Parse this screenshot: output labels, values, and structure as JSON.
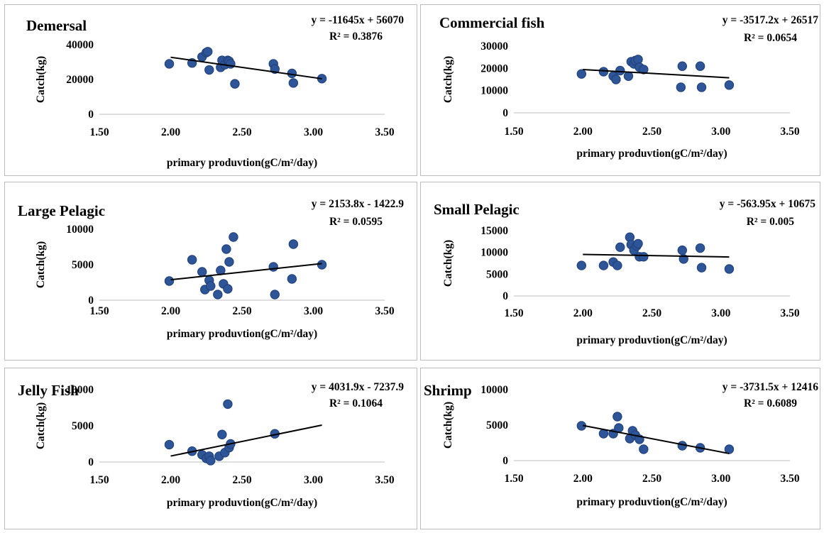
{
  "chart_data": [
    {
      "type": "scatter",
      "title": "Demersal",
      "equation": "y = -11645x + 56070",
      "r2": "R² = 0.3876",
      "xlabel": "primary produvtion(gC/m²/day)",
      "ylabel": "Catch(kg)",
      "xlim": [
        1.5,
        3.5
      ],
      "ylim": [
        0,
        40000
      ],
      "xticks": [
        "1.50",
        "2.00",
        "2.50",
        "3.00",
        "3.50"
      ],
      "yticks": [
        "0",
        "20000",
        "40000"
      ],
      "trendline": {
        "slope": -11645,
        "intercept": 56070,
        "x_range": [
          2.0,
          3.06
        ]
      },
      "points": [
        [
          1.99,
          29000
        ],
        [
          2.15,
          29500
        ],
        [
          2.22,
          33000
        ],
        [
          2.25,
          35500
        ],
        [
          2.26,
          36000
        ],
        [
          2.27,
          25500
        ],
        [
          2.35,
          27000
        ],
        [
          2.36,
          31000
        ],
        [
          2.38,
          28500
        ],
        [
          2.4,
          31000
        ],
        [
          2.41,
          30500
        ],
        [
          2.42,
          29000
        ],
        [
          2.45,
          17500
        ],
        [
          2.72,
          29000
        ],
        [
          2.73,
          26000
        ],
        [
          2.85,
          23500
        ],
        [
          2.86,
          18000
        ],
        [
          3.06,
          20500
        ]
      ]
    },
    {
      "type": "scatter",
      "title": "Commercial fish",
      "equation": "y = -3517.2x + 26517",
      "r2": "R² = 0.0654",
      "xlabel": "primary produvtion(gC/m²/day)",
      "ylabel": "Catch(kg)",
      "xlim": [
        1.5,
        3.5
      ],
      "ylim": [
        0,
        30000
      ],
      "xticks": [
        "1.50",
        "2.00",
        "2.50",
        "3.00",
        "3.50"
      ],
      "yticks": [
        "0",
        "10000",
        "20000",
        "30000"
      ],
      "trendline": {
        "slope": -3517.2,
        "intercept": 26517,
        "x_range": [
          2.0,
          3.06
        ]
      },
      "points": [
        [
          1.99,
          17500
        ],
        [
          2.15,
          18500
        ],
        [
          2.22,
          16500
        ],
        [
          2.24,
          15000
        ],
        [
          2.27,
          19000
        ],
        [
          2.33,
          16500
        ],
        [
          2.35,
          23000
        ],
        [
          2.37,
          22000
        ],
        [
          2.38,
          23500
        ],
        [
          2.4,
          24000
        ],
        [
          2.41,
          20500
        ],
        [
          2.44,
          19500
        ],
        [
          2.72,
          21000
        ],
        [
          2.71,
          11500
        ],
        [
          2.85,
          21000
        ],
        [
          2.86,
          11500
        ],
        [
          3.06,
          12500
        ]
      ]
    },
    {
      "type": "scatter",
      "title": "Large Pelagic",
      "equation": "y = 2153.8x - 1422.9",
      "r2": "R² = 0.0595",
      "xlabel": "primary produvtion(gC/m²/day)",
      "ylabel": "Catch(kg)",
      "xlim": [
        1.5,
        3.5
      ],
      "ylim": [
        0,
        10000
      ],
      "xticks": [
        "1.50",
        "2.00",
        "2.50",
        "3.00",
        "3.50"
      ],
      "yticks": [
        "0",
        "5000",
        "10000"
      ],
      "trendline": {
        "slope": 2153.8,
        "intercept": -1422.9,
        "x_range": [
          2.0,
          3.06
        ]
      },
      "points": [
        [
          1.99,
          2700
        ],
        [
          2.15,
          5700
        ],
        [
          2.22,
          4000
        ],
        [
          2.24,
          1500
        ],
        [
          2.27,
          2800
        ],
        [
          2.28,
          2000
        ],
        [
          2.33,
          800
        ],
        [
          2.35,
          4200
        ],
        [
          2.37,
          2300
        ],
        [
          2.39,
          7200
        ],
        [
          2.4,
          1600
        ],
        [
          2.41,
          5400
        ],
        [
          2.44,
          8900
        ],
        [
          2.72,
          4700
        ],
        [
          2.73,
          800
        ],
        [
          2.85,
          3000
        ],
        [
          2.86,
          7900
        ],
        [
          3.06,
          5000
        ]
      ]
    },
    {
      "type": "scatter",
      "title": "Small Pelagic",
      "equation": "y = -563.95x + 10675",
      "r2": "R² = 0.005",
      "xlabel": "primary produvtion(gC/m²/day)",
      "ylabel": "Catch(kg)",
      "xlim": [
        1.5,
        3.5
      ],
      "ylim": [
        0,
        15000
      ],
      "xticks": [
        "1.50",
        "2.00",
        "2.50",
        "3.00",
        "3.50"
      ],
      "yticks": [
        "0",
        "5000",
        "10000",
        "15000"
      ],
      "trendline": {
        "slope": -563.95,
        "intercept": 10675,
        "x_range": [
          2.0,
          3.06
        ]
      },
      "points": [
        [
          1.99,
          7000
        ],
        [
          2.15,
          7000
        ],
        [
          2.22,
          7800
        ],
        [
          2.25,
          7000
        ],
        [
          2.27,
          11200
        ],
        [
          2.34,
          13500
        ],
        [
          2.35,
          11800
        ],
        [
          2.37,
          10500
        ],
        [
          2.39,
          11500
        ],
        [
          2.4,
          12000
        ],
        [
          2.41,
          9000
        ],
        [
          2.44,
          9000
        ],
        [
          2.72,
          10500
        ],
        [
          2.73,
          8500
        ],
        [
          2.85,
          11000
        ],
        [
          2.86,
          6500
        ],
        [
          3.06,
          6200
        ]
      ]
    },
    {
      "type": "scatter",
      "title": "Jelly Fish",
      "equation": "y = 4031.9x - 7237.9",
      "r2": "R² = 0.1064",
      "xlabel": "primary produvtion(gC/m²/day)",
      "ylabel": "Catch(kg)",
      "xlim": [
        1.5,
        3.5
      ],
      "ylim": [
        0,
        10000
      ],
      "xticks": [
        "1.50",
        "2.00",
        "2.50",
        "3.00",
        "3.50"
      ],
      "yticks": [
        "0",
        "5000",
        "10000"
      ],
      "trendline": {
        "slope": 4031.9,
        "intercept": -7237.9,
        "x_range": [
          2.0,
          3.06
        ]
      },
      "points": [
        [
          1.99,
          2400
        ],
        [
          2.15,
          1500
        ],
        [
          2.22,
          1000
        ],
        [
          2.25,
          500
        ],
        [
          2.27,
          800
        ],
        [
          2.28,
          200
        ],
        [
          2.34,
          800
        ],
        [
          2.36,
          3800
        ],
        [
          2.38,
          1300
        ],
        [
          2.4,
          8000
        ],
        [
          2.41,
          2000
        ],
        [
          2.42,
          2500
        ],
        [
          2.73,
          3900
        ]
      ]
    },
    {
      "type": "scatter",
      "title": "Shrimp",
      "equation": "y = -3731.5x + 12416",
      "r2": "R² = 0.6089",
      "xlabel": "primary produvtion(gC/m²/day)",
      "ylabel": "Catch(kg)",
      "xlim": [
        1.5,
        3.5
      ],
      "ylim": [
        0,
        10000
      ],
      "xticks": [
        "1.50",
        "2.00",
        "2.50",
        "3.00",
        "3.50"
      ],
      "yticks": [
        "0",
        "5000",
        "10000"
      ],
      "trendline": {
        "slope": -3731.5,
        "intercept": 12416,
        "x_range": [
          2.0,
          3.06
        ]
      },
      "points": [
        [
          1.99,
          4900
        ],
        [
          2.15,
          3800
        ],
        [
          2.22,
          3800
        ],
        [
          2.25,
          6200
        ],
        [
          2.26,
          4600
        ],
        [
          2.34,
          3100
        ],
        [
          2.36,
          4200
        ],
        [
          2.38,
          3600
        ],
        [
          2.41,
          3000
        ],
        [
          2.44,
          1600
        ],
        [
          2.72,
          2100
        ],
        [
          2.85,
          1800
        ],
        [
          3.06,
          1600
        ]
      ]
    }
  ]
}
